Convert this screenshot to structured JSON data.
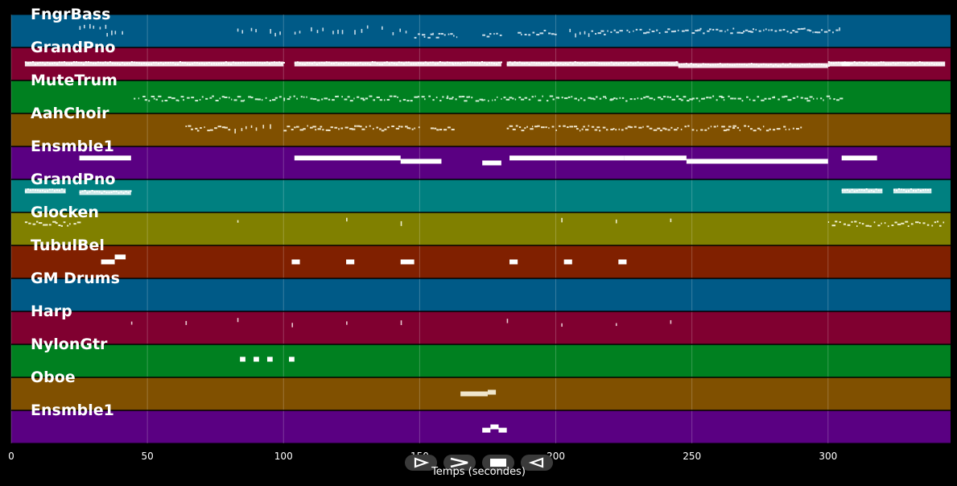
{
  "chart_data": {
    "type": "piano-roll",
    "xlabel": "Temps (secondes)",
    "xlim": [
      0,
      345
    ],
    "x_ticks": [
      0,
      50,
      100,
      150,
      200,
      250,
      300
    ],
    "tracks": [
      {
        "name": "FngrBass",
        "color": "#005a87",
        "note_color": "#c8dce8",
        "notes": [
          [
            25,
            30,
            0.4,
            "s"
          ],
          [
            30,
            35,
            0.4,
            "s"
          ],
          [
            35,
            38,
            0.6,
            "s"
          ],
          [
            38,
            42,
            0.6,
            "s"
          ],
          [
            83,
            85,
            0.45,
            "s"
          ],
          [
            88,
            91,
            0.45,
            "s"
          ],
          [
            95,
            100,
            0.55,
            "s"
          ],
          [
            104,
            106,
            0.55,
            "s"
          ],
          [
            110,
            115,
            0.45,
            "s"
          ],
          [
            118,
            122,
            0.55,
            "s"
          ],
          [
            126,
            132,
            0.45,
            "s"
          ],
          [
            136,
            138,
            0.45,
            "s"
          ],
          [
            140,
            145,
            0.55,
            "s"
          ],
          [
            148,
            164,
            0.65,
            "d"
          ],
          [
            173,
            180,
            0.65,
            "d"
          ],
          [
            186,
            200,
            0.55,
            "d"
          ],
          [
            205,
            213,
            0.55,
            "s"
          ],
          [
            213,
            224,
            0.55,
            "d"
          ],
          [
            226,
            238,
            0.5,
            "d"
          ],
          [
            240,
            265,
            0.5,
            "d"
          ],
          [
            265,
            295,
            0.5,
            "d"
          ],
          [
            295,
            304,
            0.5,
            "d"
          ],
          [
            304,
            305,
            0.5,
            "s"
          ]
        ]
      },
      {
        "name": "GrandPno",
        "color": "#800030",
        "note_color": "#ffffff",
        "notes": [
          [
            5,
            100,
            0.5,
            "t"
          ],
          [
            104,
            162,
            0.5,
            "t"
          ],
          [
            162,
            180,
            0.5,
            "t"
          ],
          [
            182,
            245,
            0.5,
            "t"
          ],
          [
            245,
            300,
            0.55,
            "t"
          ],
          [
            300,
            308,
            0.5,
            "t"
          ],
          [
            305,
            343,
            0.5,
            "t"
          ]
        ]
      },
      {
        "name": "MuteTrum",
        "color": "#008020",
        "note_color": "#cfeed5",
        "notes": [
          [
            45,
            70,
            0.55,
            "d"
          ],
          [
            70,
            100,
            0.55,
            "d"
          ],
          [
            100,
            130,
            0.55,
            "d"
          ],
          [
            130,
            160,
            0.55,
            "d"
          ],
          [
            160,
            190,
            0.55,
            "d"
          ],
          [
            190,
            220,
            0.55,
            "d"
          ],
          [
            220,
            250,
            0.55,
            "d"
          ],
          [
            250,
            280,
            0.55,
            "d"
          ],
          [
            280,
            305,
            0.55,
            "d"
          ]
        ]
      },
      {
        "name": "AahChoir",
        "color": "#805000",
        "note_color": "#f0e6cc",
        "notes": [
          [
            64,
            80,
            0.45,
            "d"
          ],
          [
            82,
            95,
            0.45,
            "s"
          ],
          [
            100,
            125,
            0.45,
            "d"
          ],
          [
            125,
            150,
            0.45,
            "d"
          ],
          [
            154,
            162,
            0.45,
            "d"
          ],
          [
            182,
            210,
            0.45,
            "d"
          ],
          [
            210,
            240,
            0.45,
            "d"
          ],
          [
            240,
            265,
            0.45,
            "d"
          ],
          [
            265,
            290,
            0.45,
            "d"
          ]
        ]
      },
      {
        "name": "Ensmble1",
        "color": "#5a0082",
        "note_color": "#ffffff",
        "notes": [
          [
            25,
            44,
            0.35,
            "b"
          ],
          [
            104,
            143,
            0.35,
            "b"
          ],
          [
            143,
            158,
            0.45,
            "b"
          ],
          [
            173,
            180,
            0.5,
            "b"
          ],
          [
            183,
            225,
            0.35,
            "b"
          ],
          [
            225,
            248,
            0.35,
            "b"
          ],
          [
            248,
            300,
            0.45,
            "b"
          ],
          [
            305,
            318,
            0.35,
            "b"
          ]
        ]
      },
      {
        "name": "GrandPno",
        "color": "#008080",
        "note_color": "#e6f5f5",
        "notes": [
          [
            5,
            20,
            0.35,
            "t"
          ],
          [
            25,
            44,
            0.4,
            "t"
          ],
          [
            305,
            320,
            0.35,
            "t"
          ],
          [
            324,
            338,
            0.35,
            "t"
          ]
        ]
      },
      {
        "name": "Glocken",
        "color": "#808000",
        "note_color": "#eeeecc",
        "notes": [
          [
            5,
            25,
            0.35,
            "d"
          ],
          [
            83,
            84,
            0.25,
            "s"
          ],
          [
            123,
            124,
            0.25,
            "s"
          ],
          [
            143,
            144,
            0.25,
            "s"
          ],
          [
            202,
            203,
            0.25,
            "s"
          ],
          [
            222,
            223,
            0.25,
            "s"
          ],
          [
            242,
            243,
            0.25,
            "s"
          ],
          [
            300,
            343,
            0.35,
            "d"
          ]
        ]
      },
      {
        "name": "TubulBel",
        "color": "#802000",
        "note_color": "#ffffff",
        "notes": [
          [
            33,
            38,
            0.5,
            "b"
          ],
          [
            38,
            42,
            0.35,
            "b"
          ],
          [
            103,
            106,
            0.5,
            "b"
          ],
          [
            123,
            126,
            0.5,
            "b"
          ],
          [
            143,
            148,
            0.5,
            "b"
          ],
          [
            183,
            186,
            0.5,
            "b"
          ],
          [
            203,
            206,
            0.5,
            "b"
          ],
          [
            223,
            226,
            0.5,
            "b"
          ]
        ]
      },
      {
        "name": "GM Drums",
        "color": "#005a87",
        "note_color": "#ffffff",
        "notes": []
      },
      {
        "name": "Harp",
        "color": "#800030",
        "note_color": "#e8c8d0",
        "notes": [
          [
            44,
            45,
            0.3,
            "s"
          ],
          [
            64,
            65,
            0.4,
            "s"
          ],
          [
            83,
            84,
            0.3,
            "s"
          ],
          [
            103,
            104,
            0.4,
            "s"
          ],
          [
            123,
            124,
            0.35,
            "s"
          ],
          [
            143,
            144,
            0.3,
            "s"
          ],
          [
            182,
            183,
            0.3,
            "s"
          ],
          [
            202,
            203,
            0.35,
            "s"
          ],
          [
            222,
            223,
            0.35,
            "s"
          ],
          [
            242,
            243,
            0.3,
            "s"
          ]
        ]
      },
      {
        "name": "NylonGtr",
        "color": "#008020",
        "note_color": "#ffffff",
        "notes": [
          [
            84,
            86,
            0.45,
            "b"
          ],
          [
            89,
            91,
            0.45,
            "b"
          ],
          [
            94,
            96,
            0.45,
            "b"
          ],
          [
            102,
            104,
            0.45,
            "b"
          ]
        ]
      },
      {
        "name": "Oboe",
        "color": "#805000",
        "note_color": "#f0e6cc",
        "notes": [
          [
            165,
            175,
            0.5,
            "b"
          ],
          [
            175,
            178,
            0.45,
            "b"
          ]
        ]
      },
      {
        "name": "Ensmble1",
        "color": "#5a0082",
        "note_color": "#ffffff",
        "notes": [
          [
            173,
            176,
            0.6,
            "b"
          ],
          [
            176,
            179,
            0.5,
            "b"
          ],
          [
            179,
            182,
            0.6,
            "b"
          ]
        ]
      }
    ]
  },
  "controls": [
    {
      "name": "play-button",
      "glyph": "play"
    },
    {
      "name": "fast-forward-button",
      "glyph": "forward"
    },
    {
      "name": "stop-button",
      "glyph": "stop"
    },
    {
      "name": "rewind-button",
      "glyph": "back"
    }
  ]
}
